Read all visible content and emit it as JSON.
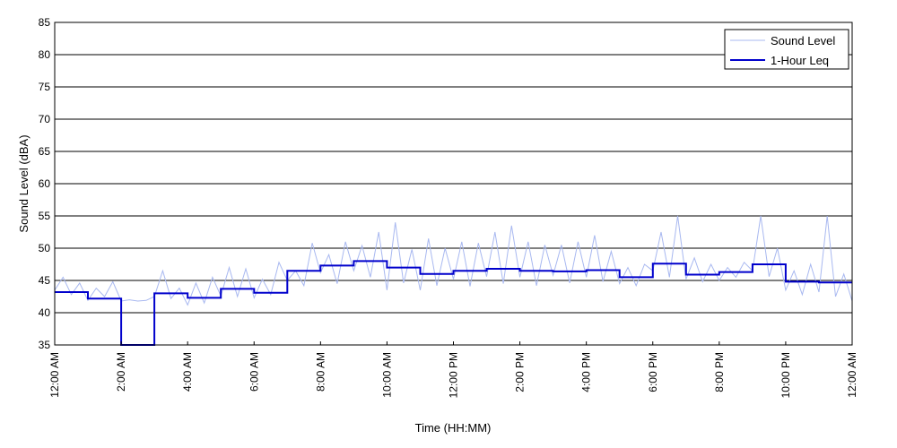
{
  "chart_data": {
    "type": "line",
    "title": "",
    "xlabel": "Time (HH:MM)",
    "ylabel": "Sound Level (dBA)",
    "ylim": [
      35,
      85
    ],
    "y_ticks": [
      35,
      40,
      45,
      50,
      55,
      60,
      65,
      70,
      75,
      80,
      85
    ],
    "xlim_hours": [
      0,
      24
    ],
    "x_tick_hours": [
      0,
      2,
      4,
      6,
      8,
      10,
      12,
      14,
      16,
      18,
      20,
      22,
      24
    ],
    "x_tick_labels": [
      "12:00 AM",
      "2:00 AM",
      "4:00 AM",
      "6:00 AM",
      "8:00 AM",
      "10:00 AM",
      "12:00 PM",
      "2:00 PM",
      "4:00 PM",
      "6:00 PM",
      "8:00 PM",
      "10:00 PM",
      "12:00 AM"
    ],
    "grid": "horizontal",
    "legend_position": "top-right",
    "series": [
      {
        "name": "Sound Level",
        "color": "#a8b8f0",
        "x_hours": [
          0,
          0.25,
          0.5,
          0.75,
          1,
          1.25,
          1.5,
          1.75,
          2,
          2.25,
          2.5,
          2.75,
          3,
          3.25,
          3.5,
          3.75,
          4,
          4.25,
          4.5,
          4.75,
          5,
          5.25,
          5.5,
          5.75,
          6,
          6.25,
          6.5,
          6.75,
          7,
          7.25,
          7.5,
          7.75,
          8,
          8.25,
          8.5,
          8.75,
          9,
          9.25,
          9.5,
          9.75,
          10,
          10.25,
          10.5,
          10.75,
          11,
          11.25,
          11.5,
          11.75,
          12,
          12.25,
          12.5,
          12.75,
          13,
          13.25,
          13.5,
          13.75,
          14,
          14.25,
          14.5,
          14.75,
          15,
          15.25,
          15.5,
          15.75,
          16,
          16.25,
          16.5,
          16.75,
          17,
          17.25,
          17.5,
          17.75,
          18,
          18.25,
          18.5,
          18.75,
          19,
          19.25,
          19.5,
          19.75,
          20,
          20.25,
          20.5,
          20.75,
          21,
          21.25,
          21.5,
          21.75,
          22,
          22.25,
          22.5,
          22.75,
          23,
          23.25,
          23.5,
          23.75,
          24
        ],
        "values": [
          43.5,
          45.5,
          42.8,
          44.6,
          41.9,
          43.8,
          42.5,
          44.8,
          41.8,
          42,
          41.8,
          41.9,
          42.5,
          46.5,
          42.2,
          43.8,
          41.2,
          44.6,
          41.5,
          45.5,
          42.6,
          47,
          42.5,
          46.8,
          42.3,
          45.2,
          42.8,
          47.8,
          45,
          46.5,
          44.2,
          50.8,
          46.2,
          49,
          44.5,
          51,
          46.5,
          50.4,
          45.5,
          52.5,
          43.5,
          54,
          44.6,
          49.8,
          43.5,
          51.5,
          44.2,
          50,
          45.2,
          51,
          44.1,
          50.8,
          45.6,
          52.5,
          44.5,
          53.5,
          45.5,
          51,
          44.2,
          50.5,
          45.8,
          50.5,
          44.6,
          51,
          45.5,
          52,
          44.8,
          49.5,
          44.5,
          47,
          44.2,
          47.5,
          46.5,
          52.5,
          45.5,
          55,
          45.2,
          48.5,
          44.8,
          47.5,
          45,
          47,
          45.5,
          47.8,
          46.5,
          55,
          45.6,
          50,
          43.5,
          46.5,
          42.8,
          47.5,
          43.2,
          55,
          42.5,
          46,
          41.8
        ]
      },
      {
        "name": "1-Hour Leq",
        "color": "#0000cc",
        "step_hour_starts": [
          0,
          1,
          2,
          3,
          4,
          5,
          6,
          7,
          8,
          9,
          10,
          11,
          12,
          13,
          14,
          15,
          16,
          17,
          18,
          19,
          20,
          21,
          22,
          23
        ],
        "values": [
          43.2,
          42.2,
          35,
          43,
          42.3,
          43.7,
          43.1,
          46.5,
          47.3,
          48,
          47,
          46,
          46.5,
          46.8,
          46.5,
          46.4,
          46.6,
          45.5,
          47.6,
          45.9,
          46.3,
          47.5,
          44.8,
          44.7
        ]
      }
    ]
  }
}
